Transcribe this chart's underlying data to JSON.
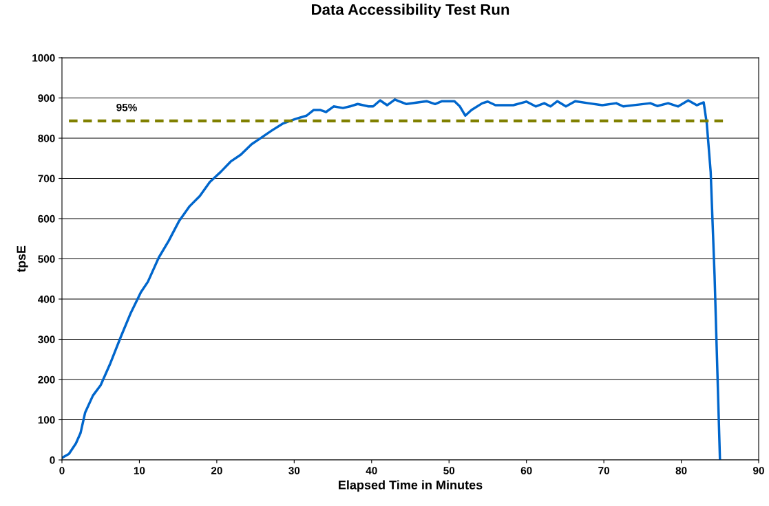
{
  "chart_data": {
    "type": "line",
    "title": "Data Accessibility Test Run",
    "xlabel": "Elapsed Time in Minutes",
    "ylabel": "tpsE",
    "xlim": [
      0,
      90
    ],
    "xticks": [
      0,
      10,
      20,
      30,
      40,
      50,
      60,
      70,
      80,
      90
    ],
    "ylim": [
      0,
      1000
    ],
    "yticks": [
      0,
      100,
      200,
      300,
      400,
      500,
      600,
      700,
      800,
      900,
      1000
    ],
    "grid": "y",
    "legend": false,
    "marker": "none",
    "line_style": "solid",
    "series": [
      {
        "color": "#0066cc",
        "x": [
          0,
          0.9,
          1.8,
          2.4,
          3,
          4,
          5,
          6.2,
          7.6,
          8.9,
          10.2,
          11.1,
          12.5,
          13.8,
          15.1,
          16.5,
          17.8,
          19.1,
          20.5,
          21.8,
          23.1,
          24.5,
          25.8,
          27.1,
          28.5,
          30.2,
          31.6,
          32.5,
          33.4,
          34.1,
          35.1,
          36.3,
          37.2,
          38.2,
          39.6,
          40.2,
          41.1,
          42,
          43,
          44.5,
          47.1,
          48.2,
          49.1,
          50.7,
          51.4,
          52.1,
          52.9,
          54.3,
          55,
          56,
          58.3,
          60,
          61.2,
          62.3,
          63.1,
          64,
          65.1,
          66.3,
          68,
          69.8,
          71.6,
          72.5,
          74.7,
          76,
          76.9,
          78.3,
          79.6,
          80.9,
          82,
          82.9,
          83.3,
          83.8,
          84.3,
          85
        ],
        "values": [
          5,
          15,
          41,
          67,
          118,
          160,
          186,
          238,
          306,
          366,
          417,
          443,
          503,
          545,
          593,
          631,
          656,
          691,
          716,
          742,
          759,
          785,
          802,
          819,
          836,
          848,
          856,
          870,
          870,
          865,
          879,
          875,
          879,
          885,
          879,
          879,
          894,
          882,
          896,
          885,
          892,
          885,
          892,
          892,
          879,
          856,
          870,
          887,
          891,
          882,
          882,
          891,
          879,
          887,
          879,
          892,
          879,
          892,
          887,
          882,
          887,
          879,
          884,
          887,
          880,
          887,
          879,
          894,
          882,
          889,
          836,
          716,
          460,
          0
        ]
      }
    ],
    "ref_lines": [
      {
        "axis": "y",
        "value": 843,
        "color": "#808000",
        "line_style": "dashed"
      }
    ],
    "annotations": [
      {
        "text": "95%",
        "x": 7,
        "y": 843
      }
    ]
  }
}
